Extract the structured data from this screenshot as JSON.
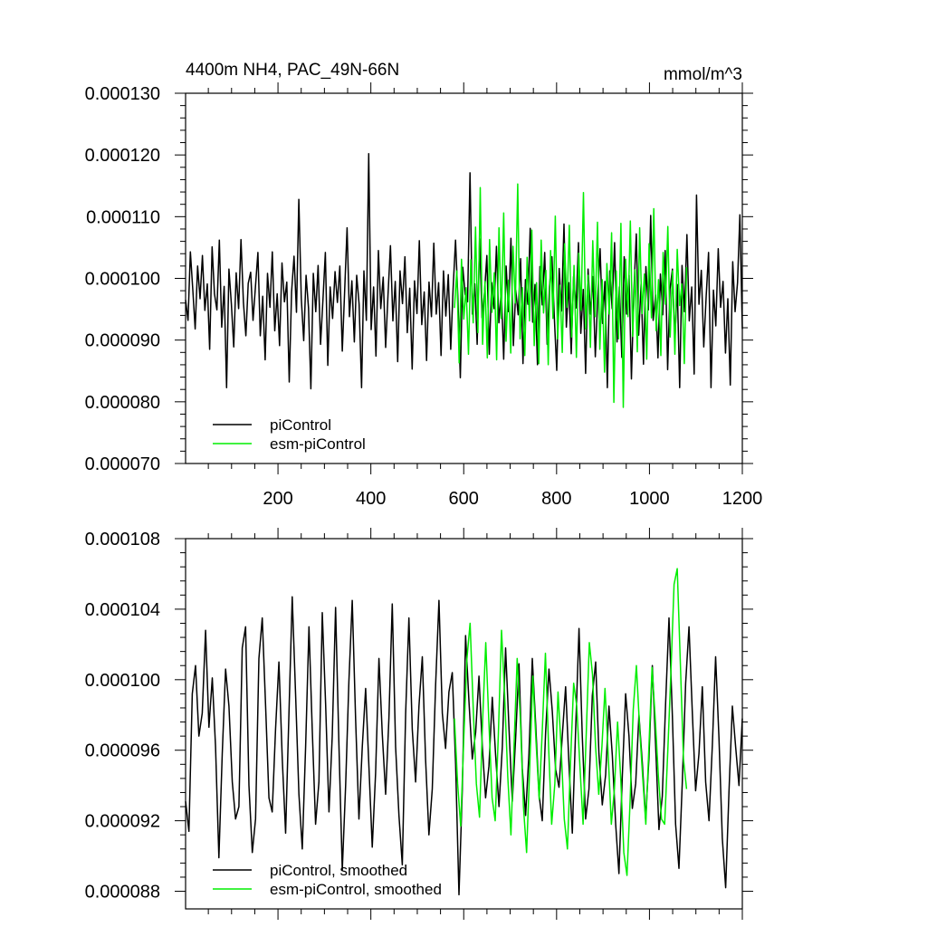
{
  "chart_data": [
    {
      "type": "line",
      "title": "4400m NH4, PAC_49N-66N",
      "units": "mmol/m^3",
      "xlim": [
        1,
        1200
      ],
      "ylim": [
        7e-05,
        0.00013
      ],
      "x_ticks": [
        200,
        400,
        600,
        800,
        1000,
        1200
      ],
      "y_tick_labels": [
        "0.000070",
        "0.000080",
        "0.000090",
        "0.000100",
        "0.000110",
        "0.000120",
        "0.000130"
      ],
      "y_ticks": [
        7e-05,
        8e-05,
        9e-05,
        0.0001,
        0.00011,
        0.00012,
        0.00013
      ],
      "legend_position": "bottom-left",
      "grid": false,
      "series": [
        {
          "name": "piControl",
          "color": "#000000",
          "x_start": 1,
          "x_end": 1200,
          "values": [
            9.65e-05,
            9.32e-05,
            0.0001043,
            9.81e-05,
            9.18e-05,
            0.000102,
            9.67e-05,
            0.0001037,
            9.48e-05,
            9.91e-05,
            8.85e-05,
            0.0001051,
            9.75e-05,
            9.49e-05,
            0.0001062,
            9.21e-05,
            9.87e-05,
            8.23e-05,
            0.0001015,
            9.58e-05,
            8.89e-05,
            0.0001009,
            9.51e-05,
            0.0001063,
            9.61e-05,
            9.07e-05,
            9.92e-05,
            0.000101,
            9.32e-05,
            9.87e-05,
            0.0001042,
            9.07e-05,
            9.71e-05,
            8.68e-05,
            0.0001008,
            9.53e-05,
            0.0001043,
            9.15e-05,
            9.75e-05,
            8.91e-05,
            0.0001025,
            9.62e-05,
            9.94e-05,
            8.32e-05,
            9.78e-05,
            0.0001036,
            9.45e-05,
            0.0001128,
            9.68e-05,
            8.99e-05,
            0.0001005,
            9.52e-05,
            8.21e-05,
            0.0001008,
            9.46e-05,
            0.0001021,
            8.93e-05,
            9.67e-05,
            0.0001042,
            8.59e-05,
            9.86e-05,
            9.35e-05,
            0.0001011,
            9.61e-05,
            0.000102,
            8.82e-05,
            9.79e-05,
            0.0001082,
            9.38e-05,
            9.96e-05,
            8.97e-05,
            0.0001005,
            9.58e-05,
            8.23e-05,
            0.0001012,
            9.32e-05,
            0.0001202,
            9.17e-05,
            9.86e-05,
            8.74e-05,
            0.0001045,
            9.51e-05,
            0.0001002,
            8.88e-05,
            9.73e-05,
            0.0001053,
            9.31e-05,
            9.95e-05,
            8.65e-05,
            0.0001012,
            9.59e-05,
            0.0001035,
            9.12e-05,
            9.84e-05,
            8.53e-05,
            9.96e-05,
            9.43e-05,
            0.0001061,
            9.25e-05,
            9.78e-05,
            8.67e-05,
            9.94e-05,
            9.38e-05,
            0.0001057,
            9.42e-05,
            9.93e-05,
            8.75e-05,
            0.0001012,
            9.39e-05,
            0.0001006,
            8.85e-05,
            9.83e-05,
            0.0001062,
            9.68e-05,
            8.39e-05,
            0.0001018,
            9.74e-05,
            9.62e-05,
            0.0001171,
            9.42e-05,
            9.91e-05,
            8.93e-05,
            0.0001064,
            9.36e-05,
            9.75e-05,
            0.0001037,
            8.77e-05,
            9.93e-05,
            9.51e-05,
            0.0001052,
            9.28e-05,
            9.82e-05,
            8.69e-05,
            0.000102,
            9.46e-05,
            0.0001065,
            8.91e-05,
            9.81e-05,
            9.41e-05,
            0.0001032,
            8.62e-05,
            9.98e-05,
            9.58e-05,
            0.0001081,
            9.29e-05,
            9.9e-05,
            8.6e-05,
            0.0001019,
            9.57e-05,
            0.0001042,
            8.93e-05,
            9.87e-05,
            0.0001035,
            9.38e-05,
            8.51e-05,
            0.0001016,
            9.47e-05,
            0.0001088,
            9.21e-05,
            9.93e-05,
            8.78e-05,
            0.0001003,
            9.52e-05,
            0.0001058,
            9.11e-05,
            9.82e-05,
            8.46e-05,
            0.0001015,
            9.42e-05,
            0.0001003,
            8.73e-05,
            9.69e-05,
            0.0001048,
            9.27e-05,
            9.95e-05,
            8.23e-05,
            0.0001012,
            9.51e-05,
            0.0001058,
            8.97e-05,
            9.86e-05,
            8.72e-05,
            0.0001035,
            9.42e-05,
            0.0001005,
            8.37e-05,
            9.78e-05,
            0.0001072,
            9.08e-05,
            9.91e-05,
            8.61e-05,
            0.0001019,
            9.49e-05,
            0.0001102,
            9.32e-05,
            9.73e-05,
            8.71e-05,
            0.0001007,
            9.41e-05,
            0.0001045,
            8.52e-05,
            9.83e-05,
            0.0001015,
            8.98e-05,
            9.9e-05,
            8.23e-05,
            0.0001021,
            9.46e-05,
            0.0001071,
            9.31e-05,
            9.86e-05,
            8.45e-05,
            0.0001135,
            9.58e-05,
            0.0001013,
            8.89e-05,
            9.72e-05,
            0.0001042,
            8.23e-05,
            9.81e-05,
            9.23e-05,
            0.0001048,
            9.53e-05,
            9.95e-05,
            8.79e-05,
            9.67e-05,
            8.27e-05,
            0.0001027,
            9.46e-05,
            9.93e-05,
            0.0001103,
            9.18e-05
          ]
        },
        {
          "name": "esm-piControl",
          "color": "#00ee00",
          "x_start": 580,
          "x_end": 1080,
          "values": [
            9.52e-05,
            0.0001012,
            8.63e-05,
            0.0001031,
            9.34e-05,
            9.85e-05,
            8.77e-05,
            0.000103,
            9.28e-05,
            0.0001083,
            9.12e-05,
            0.0001147,
            8.93e-05,
            9.95e-05,
            8.71e-05,
            0.0001063,
            9.45e-05,
            0.0001009,
            8.68e-05,
            0.0001082,
            9.35e-05,
            0.0001106,
            8.98e-05,
            9.97e-05,
            8.79e-05,
            0.0001052,
            9.6e-05,
            0.0001153,
            9.02e-05,
            9.85e-05,
            8.75e-05,
            0.0001034,
            9.31e-05,
            0.0001078,
            8.91e-05,
            9.93e-05,
            8.62e-05,
            0.0001062,
            9.44e-05,
            0.0001013,
            8.6e-05,
            0.0001045,
            9.35e-05,
            0.0001101,
            9.02e-05,
            9.89e-05,
            8.8e-05,
            0.0001056,
            9.53e-05,
            0.0001086,
            9.05e-05,
            0.0001021,
            8.72e-05,
            0.0001041,
            9.48e-05,
            0.0001139,
            9.18e-05,
            0.0001005,
            8.88e-05,
            0.0001061,
            9.38e-05,
            0.0001091,
            8.85e-05,
            9.98e-05,
            8.48e-05,
            0.0001024,
            9.42e-05,
            0.0001074,
            7.99e-05,
            0.0001012,
            9.02e-05,
            0.0001089,
            7.91e-05,
            0.0001031,
            9.38e-05,
            0.0001093,
            9.06e-05,
            0.0001014,
            8.81e-05,
            0.0001082,
            9.43e-05,
            0.0001007,
            8.69e-05,
            0.0001056,
            9.36e-05,
            0.0001113,
            9.15e-05,
            9.98e-05,
            8.75e-05,
            0.0001042,
            9.58e-05,
            0.0001084,
            9.05e-05,
            0.0001012,
            8.77e-05,
            0.0001047,
            9.56e-05,
            9.91e-05,
            8.62e-05,
            0.0001018
          ]
        }
      ]
    },
    {
      "type": "line",
      "xlim": [
        1,
        1200
      ],
      "ylim": [
        8.7e-05,
        0.000108
      ],
      "y_tick_labels": [
        "0.000088",
        "0.000092",
        "0.000096",
        "0.000100",
        "0.000104",
        "0.000108"
      ],
      "y_ticks": [
        8.8e-05,
        9.2e-05,
        9.6e-05,
        0.0001,
        0.000104,
        0.000108
      ],
      "legend_position": "bottom-left",
      "grid": false,
      "series": [
        {
          "name": "piControl, smoothed",
          "color": "#000000",
          "x_start": 1,
          "x_end": 1200,
          "values": [
            9.31e-05,
            9.14e-05,
            9.92e-05,
            0.0001008,
            9.68e-05,
            9.81e-05,
            0.0001028,
            9.73e-05,
            0.0001001,
            9.62e-05,
            8.99e-05,
            9.58e-05,
            0.0001006,
            9.85e-05,
            9.42e-05,
            9.21e-05,
            9.28e-05,
            0.0001018,
            0.000103,
            9.4e-05,
            9.02e-05,
            9.21e-05,
            0.0001012,
            0.0001035,
            9.85e-05,
            9.33e-05,
            9.25e-05,
            9.72e-05,
            0.000101,
            9.55e-05,
            9.13e-05,
            9.81e-05,
            0.0001047,
            9.92e-05,
            9.35e-05,
            9.04e-05,
            9.62e-05,
            0.000103,
            9.72e-05,
            9.18e-05,
            9.42e-05,
            0.0001038,
            9.86e-05,
            9.25e-05,
            9.68e-05,
            0.0001041,
            9.63e-05,
            8.92e-05,
            9.4e-05,
            9.99e-05,
            0.0001045,
            9.78e-05,
            9.21e-05,
            9.62e-05,
            9.95e-05,
            9.51e-05,
            9.05e-05,
            9.47e-05,
            0.0001012,
            9.69e-05,
            9.35e-05,
            9.78e-05,
            0.0001043,
            9.62e-05,
            9.23e-05,
            8.95e-05,
            9.81e-05,
            0.0001035,
            9.72e-05,
            9.42e-05,
            9.85e-05,
            0.0001013,
            9.55e-05,
            9.12e-05,
            9.38e-05,
            9.97e-05,
            0.0001045,
            9.81e-05,
            9.61e-05,
            9.93e-05,
            0.0001004,
            9.52e-05,
            8.78e-05,
            9.38e-05,
            0.0001025,
            9.88e-05,
            9.55e-05,
            9.7e-05,
            0.0001002,
            9.62e-05,
            9.33e-05,
            9.51e-05,
            9.9e-05,
            9.57e-05,
            9.28e-05,
            9.62e-05,
            0.0001018,
            9.73e-05,
            9.31e-05,
            9.67e-05,
            0.0001009,
            9.5e-05,
            9.23e-05,
            9.58e-05,
            0.0001012,
            9.75e-05,
            9.35e-05,
            9.2e-05,
            9.7e-05,
            0.0001006,
            9.82e-05,
            9.49e-05,
            9.39e-05,
            9.68e-05,
            9.96e-05,
            9.52e-05,
            9.13e-05,
            9.72e-05,
            0.0001029,
            9.68e-05,
            9.21e-05,
            9.38e-05,
            9.91e-05,
            0.000101,
            9.58e-05,
            9.29e-05,
            9.46e-05,
            9.85e-05,
            9.57e-05,
            9.18e-05,
            8.9e-05,
            9.45e-05,
            9.92e-05,
            9.68e-05,
            9.27e-05,
            9.41e-05,
            9.8e-05,
            9.53e-05,
            9.21e-05,
            9.56e-05,
            0.0001008,
            9.62e-05,
            9.15e-05,
            9.34e-05,
            9.87e-05,
            0.0001035,
            9.8e-05,
            9.18e-05,
            8.93e-05,
            9.42e-05,
            9.98e-05,
            0.000103,
            9.81e-05,
            9.37e-05,
            9.58e-05,
            9.96e-05,
            9.42e-05,
            9.2e-05,
            9.63e-05,
            0.0001013,
            9.67e-05,
            9.1e-05,
            8.82e-05,
            9.37e-05,
            9.85e-05,
            9.62e-05,
            9.4e-05,
            9.78e-05
          ]
        },
        {
          "name": "esm-piControl, smoothed",
          "color": "#00ee00",
          "x_start": 580,
          "x_end": 1080,
          "values": [
            9.78e-05,
            9.41e-05,
            9.17e-05,
            9.68e-05,
            0.0001012,
            0.0001032,
            9.83e-05,
            9.41e-05,
            9.22e-05,
            9.78e-05,
            0.0001021,
            9.75e-05,
            9.33e-05,
            9.2e-05,
            9.69e-05,
            0.0001028,
            9.92e-05,
            9.45e-05,
            9.12e-05,
            9.62e-05,
            0.0001012,
            9.78e-05,
            9.28e-05,
            9.02e-05,
            9.51e-05,
            0.0001002,
            9.65e-05,
            9.32e-05,
            9.71e-05,
            0.0001015,
            9.62e-05,
            9.18e-05,
            9.41e-05,
            9.93e-05,
            9.62e-05,
            9.21e-05,
            9.04e-05,
            9.53e-05,
            9.98e-05,
            9.85e-05,
            9.51e-05,
            9.18e-05,
            9.68e-05,
            0.0001021,
            0.0001003,
            9.62e-05,
            9.35e-05,
            9.62e-05,
            9.95e-05,
            9.58e-05,
            9.18e-05,
            9.38e-05,
            9.76e-05,
            9.44e-05,
            9.02e-05,
            8.89e-05,
            9.32e-05,
            9.83e-05,
            0.0001008,
            9.73e-05,
            9.45e-05,
            9.18e-05,
            9.63e-05,
            0.0001007,
            9.78e-05,
            9.45e-05,
            9.21e-05,
            9.18e-05,
            9.6e-05,
            0.0001004,
            0.0001054,
            0.0001063,
            0.000101,
            9.55e-05,
            9.38e-05
          ]
        }
      ]
    }
  ],
  "plots": [
    {
      "title": "4400m NH4, PAC_49N-66N",
      "units": "mmol/m^3",
      "legend": [
        "piControl",
        "esm-piControl"
      ]
    },
    {
      "legend": [
        "piControl, smoothed",
        "esm-piControl, smoothed"
      ]
    }
  ]
}
